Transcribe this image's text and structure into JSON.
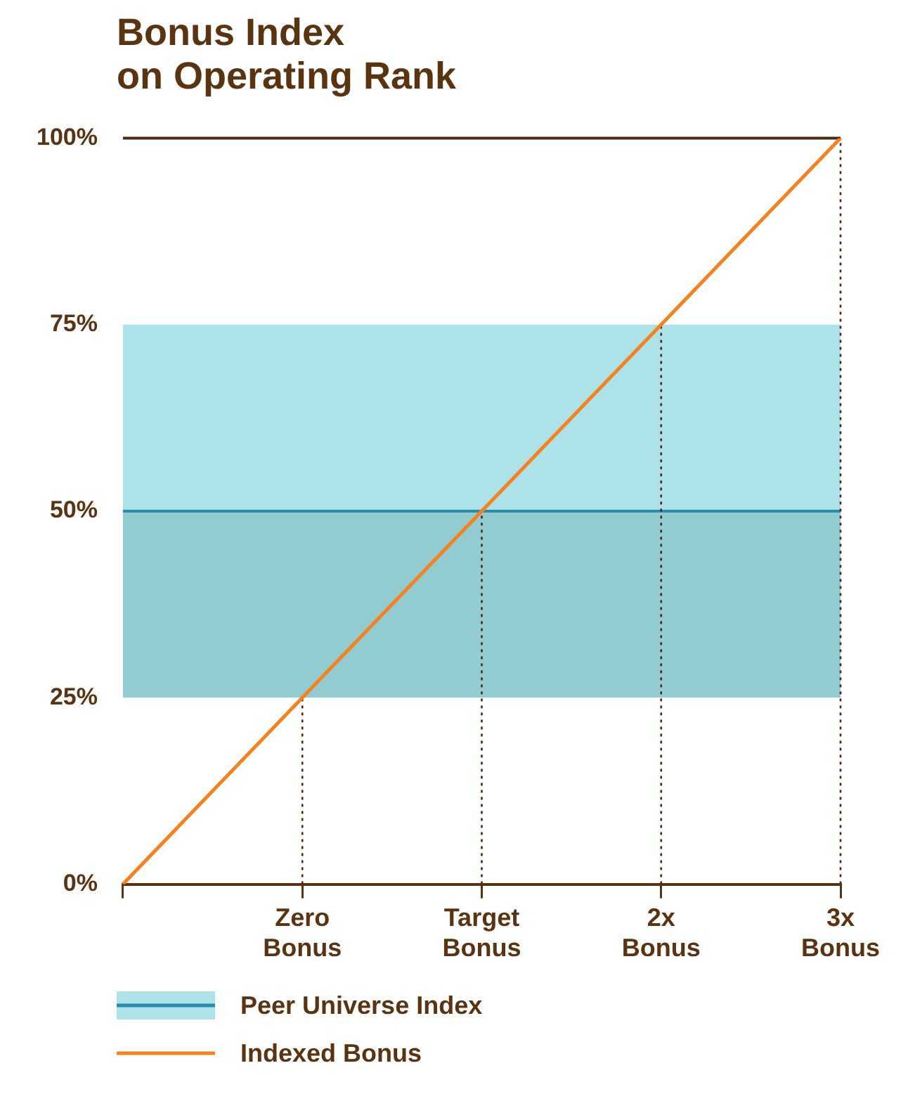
{
  "chart_data": {
    "type": "line",
    "title": "Bonus Index\non Operating Rank",
    "categories": [
      null,
      "Zero\nBonus",
      "Target\nBonus",
      "2x\nBonus",
      "3x\nBonus"
    ],
    "series": [
      {
        "name": "Indexed Bonus",
        "color": "#f5821f",
        "values": [
          0,
          25,
          50,
          75,
          100
        ]
      }
    ],
    "ylim": [
      0,
      100
    ],
    "yticks": [
      {
        "value": 0,
        "label": "0%"
      },
      {
        "value": 25,
        "label": "25%"
      },
      {
        "value": 50,
        "label": "50%"
      },
      {
        "value": 75,
        "label": "75%"
      },
      {
        "value": 100,
        "label": "100%"
      }
    ],
    "bands": [
      {
        "axis": "y",
        "from": 50,
        "to": 75,
        "color": "#ade3e8"
      },
      {
        "axis": "y",
        "from": 25,
        "to": 50,
        "color": "#92cbd0"
      }
    ],
    "ref_lines": [
      {
        "axis": "y",
        "value": 50,
        "label": "Peer Universe Index",
        "color": "#2a8ca8",
        "line_style": "solid"
      },
      {
        "axis": "y",
        "value": 100,
        "color": "#4a2a10",
        "line_style": "solid"
      },
      {
        "axis": "x",
        "value": "Zero\nBonus",
        "color": "#4a2a10",
        "line_style": "dotted"
      },
      {
        "axis": "x",
        "value": "Target\nBonus",
        "color": "#4a2a10",
        "line_style": "dotted"
      },
      {
        "axis": "x",
        "value": "2x\nBonus",
        "color": "#4a2a10",
        "line_style": "dotted"
      },
      {
        "axis": "x",
        "value": "3x\nBonus",
        "color": "#4a2a10",
        "line_style": "dotted"
      }
    ],
    "grid": false,
    "legend": "bottom",
    "marker": "none",
    "line_style": "solid"
  }
}
